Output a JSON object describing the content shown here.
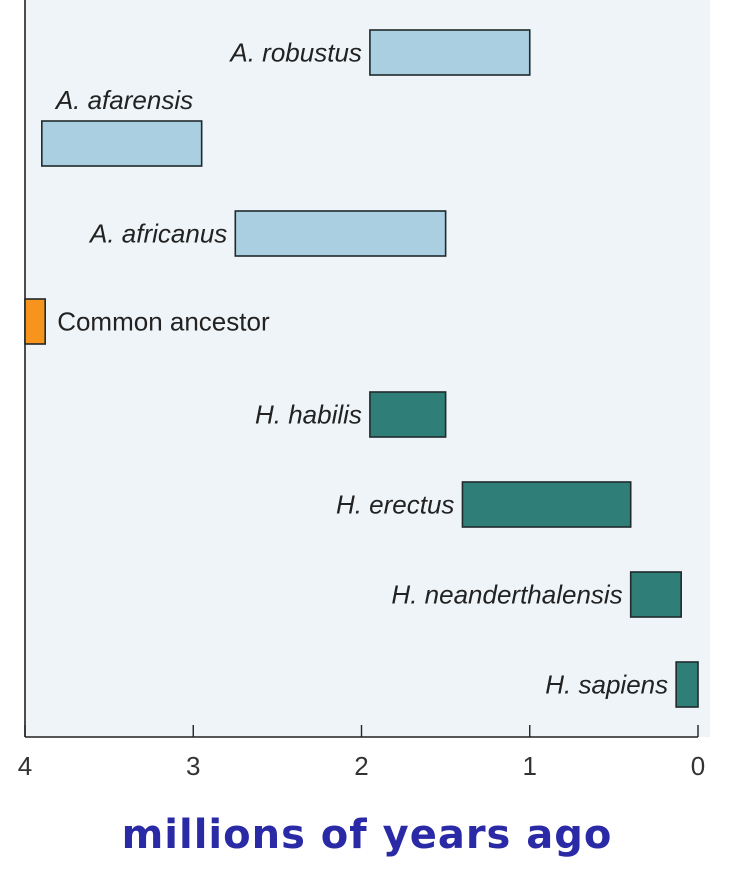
{
  "chart_data": {
    "type": "bar",
    "orientation": "horizontal-range",
    "title": "",
    "xlabel": "millions of years ago",
    "ylabel": "",
    "xlim": [
      4,
      0
    ],
    "xticks": [
      "4",
      "3",
      "2",
      "1",
      "0"
    ],
    "grid": false,
    "legend": "none",
    "colors": {
      "australopithecus": "#a9cfe0",
      "homo": "#2f7f78",
      "ancestor": "#f7941d",
      "background": "#eef4f8"
    },
    "series": [
      {
        "name": "A. robustus",
        "start": 1.95,
        "end": 1.0,
        "group": "australopithecus",
        "label_style": "italic",
        "label_side": "left"
      },
      {
        "name": "A. afarensis",
        "start": 3.9,
        "end": 2.95,
        "group": "australopithecus",
        "label_style": "italic",
        "label_side": "above"
      },
      {
        "name": "A. africanus",
        "start": 2.75,
        "end": 1.5,
        "group": "australopithecus",
        "label_style": "italic",
        "label_side": "left"
      },
      {
        "name": "Common ancestor",
        "start": 4.0,
        "end": 3.88,
        "group": "ancestor",
        "label_style": "normal",
        "label_side": "right"
      },
      {
        "name": "H. habilis",
        "start": 1.95,
        "end": 1.5,
        "group": "homo",
        "label_style": "italic",
        "label_side": "left"
      },
      {
        "name": "H. erectus",
        "start": 1.4,
        "end": 0.4,
        "group": "homo",
        "label_style": "italic",
        "label_side": "left"
      },
      {
        "name": "H. neanderthalensis",
        "start": 0.4,
        "end": 0.1,
        "group": "homo",
        "label_style": "italic",
        "label_side": "left"
      },
      {
        "name": "H. sapiens",
        "start": 0.13,
        "end": 0.0,
        "group": "homo",
        "label_style": "italic",
        "label_side": "left"
      }
    ]
  }
}
